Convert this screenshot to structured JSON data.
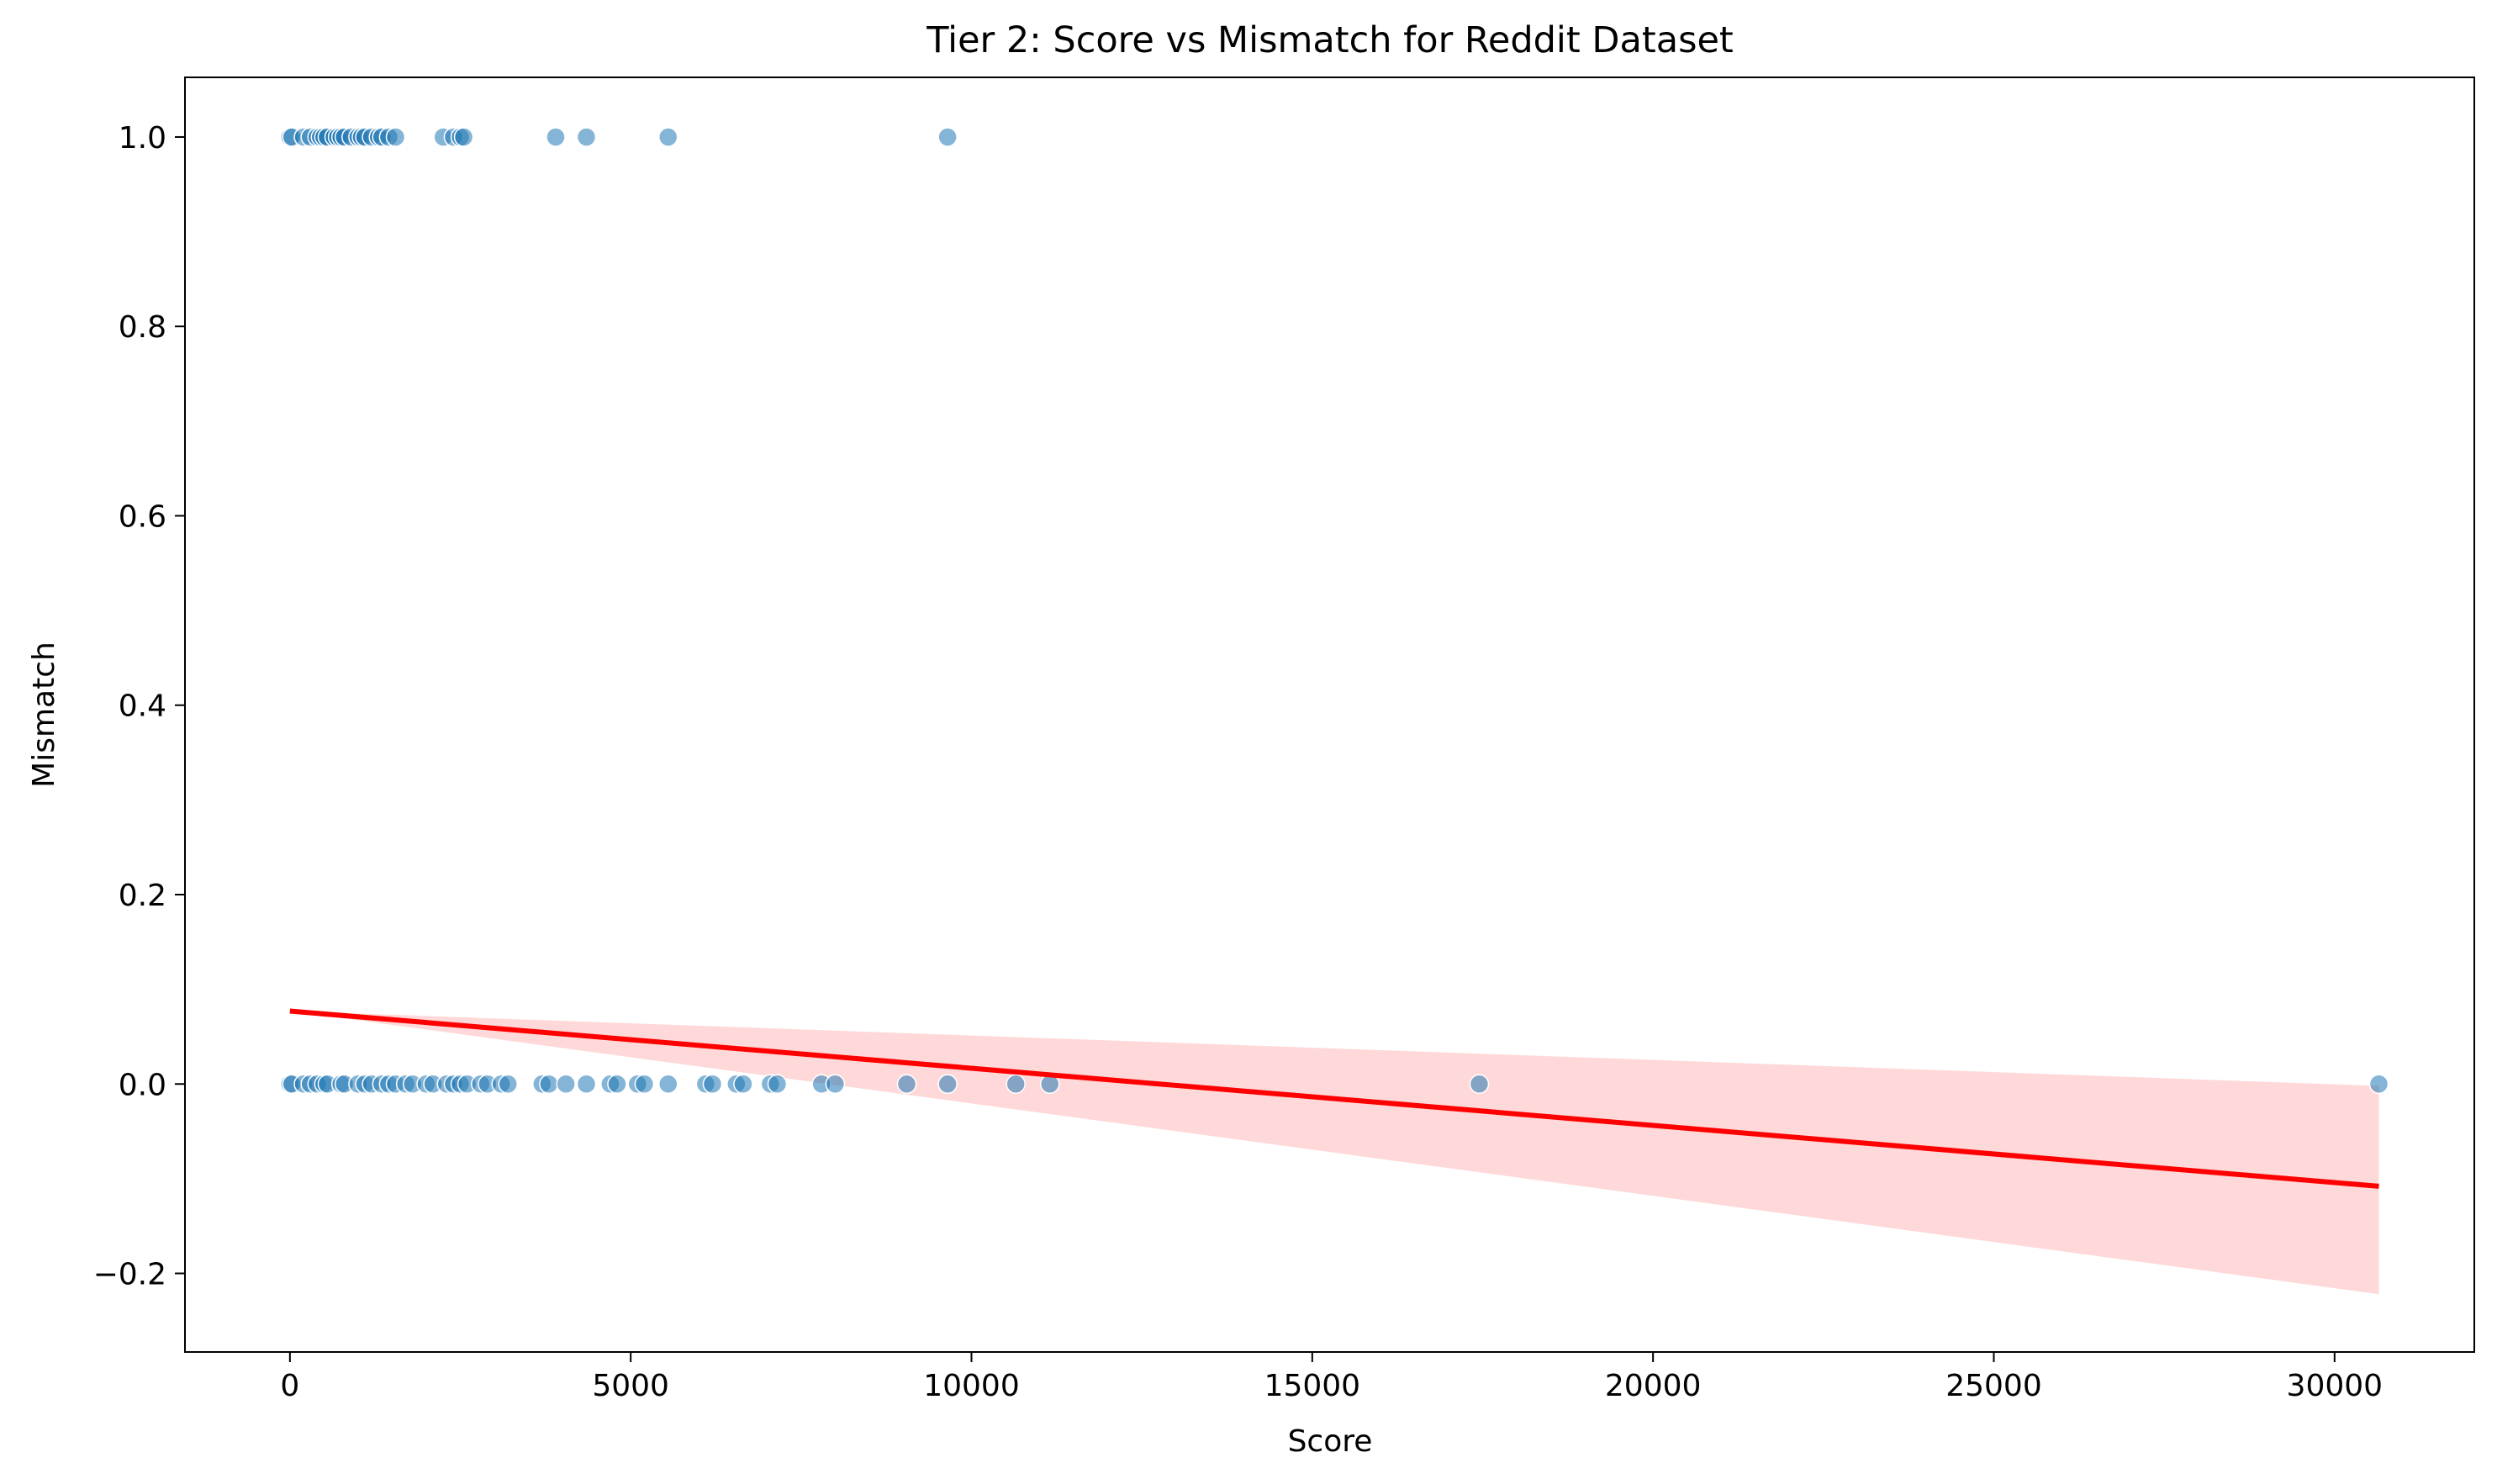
{
  "chart_data": {
    "type": "scatter",
    "title": "Tier 2: Score vs Mismatch for Reddit Dataset",
    "xlabel": "Score",
    "ylabel": "Mismatch",
    "xlim": [
      -1540,
      32050
    ],
    "ylim": [
      -0.283,
      1.063
    ],
    "xticks": [
      0,
      5000,
      10000,
      15000,
      20000,
      25000,
      30000
    ],
    "xtick_labels": [
      "0",
      "5000",
      "10000",
      "15000",
      "20000",
      "25000",
      "30000"
    ],
    "yticks": [
      -0.2,
      0.0,
      0.2,
      0.4,
      0.6,
      0.8,
      1.0
    ],
    "ytick_labels": [
      "−0.2",
      "0.0",
      "0.2",
      "0.4",
      "0.6",
      "0.8",
      "1.0"
    ],
    "grid": false,
    "colors": {
      "points": "#1f77b4",
      "regression_line": "#ff0000",
      "confidence_band": "#ff8080"
    },
    "series": [
      {
        "values": [
          {
            "x": 0,
            "y": 1
          },
          {
            "x": 30,
            "y": 1
          },
          {
            "x": 200,
            "y": 1
          },
          {
            "x": 300,
            "y": 1
          },
          {
            "x": 400,
            "y": 1
          },
          {
            "x": 450,
            "y": 1
          },
          {
            "x": 500,
            "y": 1
          },
          {
            "x": 550,
            "y": 1
          },
          {
            "x": 650,
            "y": 1
          },
          {
            "x": 700,
            "y": 1
          },
          {
            "x": 750,
            "y": 1
          },
          {
            "x": 800,
            "y": 1
          },
          {
            "x": 900,
            "y": 1
          },
          {
            "x": 1000,
            "y": 1
          },
          {
            "x": 1050,
            "y": 1
          },
          {
            "x": 1100,
            "y": 1
          },
          {
            "x": 1200,
            "y": 1
          },
          {
            "x": 1300,
            "y": 1
          },
          {
            "x": 1350,
            "y": 1
          },
          {
            "x": 1450,
            "y": 1
          },
          {
            "x": 1550,
            "y": 1
          },
          {
            "x": 2250,
            "y": 1
          },
          {
            "x": 2400,
            "y": 1
          },
          {
            "x": 2500,
            "y": 1
          },
          {
            "x": 2550,
            "y": 1
          },
          {
            "x": 3900,
            "y": 1
          },
          {
            "x": 4350,
            "y": 1
          },
          {
            "x": 5550,
            "y": 1
          },
          {
            "x": 9650,
            "y": 1
          },
          {
            "x": 0,
            "y": 0
          },
          {
            "x": 30,
            "y": 0
          },
          {
            "x": 200,
            "y": 0
          },
          {
            "x": 300,
            "y": 0
          },
          {
            "x": 400,
            "y": 0
          },
          {
            "x": 500,
            "y": 0
          },
          {
            "x": 550,
            "y": 0
          },
          {
            "x": 750,
            "y": 0
          },
          {
            "x": 800,
            "y": 0
          },
          {
            "x": 1000,
            "y": 0
          },
          {
            "x": 1100,
            "y": 0
          },
          {
            "x": 1200,
            "y": 0
          },
          {
            "x": 1350,
            "y": 0
          },
          {
            "x": 1450,
            "y": 0
          },
          {
            "x": 1550,
            "y": 0
          },
          {
            "x": 1700,
            "y": 0
          },
          {
            "x": 1800,
            "y": 0
          },
          {
            "x": 2000,
            "y": 0
          },
          {
            "x": 2100,
            "y": 0
          },
          {
            "x": 2300,
            "y": 0
          },
          {
            "x": 2400,
            "y": 0
          },
          {
            "x": 2500,
            "y": 0
          },
          {
            "x": 2600,
            "y": 0
          },
          {
            "x": 2800,
            "y": 0
          },
          {
            "x": 2900,
            "y": 0
          },
          {
            "x": 3100,
            "y": 0
          },
          {
            "x": 3200,
            "y": 0
          },
          {
            "x": 3700,
            "y": 0
          },
          {
            "x": 3800,
            "y": 0
          },
          {
            "x": 4050,
            "y": 0
          },
          {
            "x": 4350,
            "y": 0
          },
          {
            "x": 4700,
            "y": 0
          },
          {
            "x": 4800,
            "y": 0
          },
          {
            "x": 5100,
            "y": 0
          },
          {
            "x": 5200,
            "y": 0
          },
          {
            "x": 5550,
            "y": 0
          },
          {
            "x": 6100,
            "y": 0
          },
          {
            "x": 6200,
            "y": 0
          },
          {
            "x": 6550,
            "y": 0
          },
          {
            "x": 6650,
            "y": 0
          },
          {
            "x": 7050,
            "y": 0
          },
          {
            "x": 7150,
            "y": 0
          },
          {
            "x": 7800,
            "y": 0
          },
          {
            "x": 8000,
            "y": 0
          },
          {
            "x": 9050,
            "y": 0
          },
          {
            "x": 9650,
            "y": 0
          },
          {
            "x": 10650,
            "y": 0
          },
          {
            "x": 11150,
            "y": 0
          },
          {
            "x": 17450,
            "y": 0
          },
          {
            "x": 30650,
            "y": 0
          }
        ]
      }
    ],
    "regression": {
      "x": [
        0,
        30650
      ],
      "y": [
        0.077,
        -0.108
      ],
      "ci_lower": [
        0.077,
        -0.222
      ],
      "ci_upper": [
        0.077,
        -0.002
      ]
    }
  }
}
